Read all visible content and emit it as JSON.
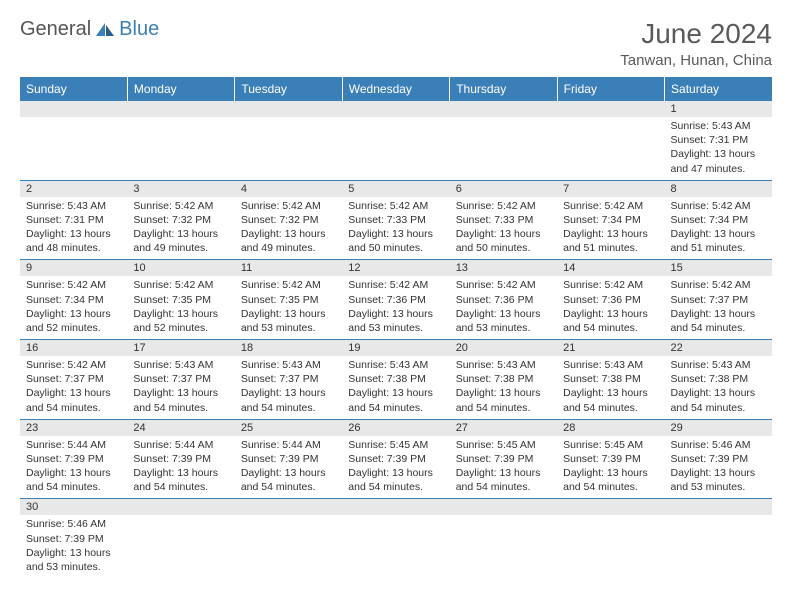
{
  "brand": {
    "text1": "General",
    "text2": "Blue"
  },
  "title": "June 2024",
  "location": "Tanwan, Hunan, China",
  "colors": {
    "header_bg": "#3b7fb8",
    "header_text": "#ffffff",
    "daynum_bg": "#e8e8e8",
    "cell_border": "#3b7fb8",
    "page_bg": "#ffffff",
    "text": "#333333",
    "title_color": "#5a5a5a"
  },
  "weekdays": [
    "Sunday",
    "Monday",
    "Tuesday",
    "Wednesday",
    "Thursday",
    "Friday",
    "Saturday"
  ],
  "labels": {
    "sunrise": "Sunrise:",
    "sunset": "Sunset:",
    "daylight": "Daylight:",
    "hours": "hours",
    "minutes": "minutes."
  },
  "weeks": [
    [
      null,
      null,
      null,
      null,
      null,
      null,
      {
        "day": "1",
        "sunrise": "5:43 AM",
        "sunset": "7:31 PM",
        "dl_h": "13",
        "dl_m": "47"
      }
    ],
    [
      {
        "day": "2",
        "sunrise": "5:43 AM",
        "sunset": "7:31 PM",
        "dl_h": "13",
        "dl_m": "48"
      },
      {
        "day": "3",
        "sunrise": "5:42 AM",
        "sunset": "7:32 PM",
        "dl_h": "13",
        "dl_m": "49"
      },
      {
        "day": "4",
        "sunrise": "5:42 AM",
        "sunset": "7:32 PM",
        "dl_h": "13",
        "dl_m": "49"
      },
      {
        "day": "5",
        "sunrise": "5:42 AM",
        "sunset": "7:33 PM",
        "dl_h": "13",
        "dl_m": "50"
      },
      {
        "day": "6",
        "sunrise": "5:42 AM",
        "sunset": "7:33 PM",
        "dl_h": "13",
        "dl_m": "50"
      },
      {
        "day": "7",
        "sunrise": "5:42 AM",
        "sunset": "7:34 PM",
        "dl_h": "13",
        "dl_m": "51"
      },
      {
        "day": "8",
        "sunrise": "5:42 AM",
        "sunset": "7:34 PM",
        "dl_h": "13",
        "dl_m": "51"
      }
    ],
    [
      {
        "day": "9",
        "sunrise": "5:42 AM",
        "sunset": "7:34 PM",
        "dl_h": "13",
        "dl_m": "52"
      },
      {
        "day": "10",
        "sunrise": "5:42 AM",
        "sunset": "7:35 PM",
        "dl_h": "13",
        "dl_m": "52"
      },
      {
        "day": "11",
        "sunrise": "5:42 AM",
        "sunset": "7:35 PM",
        "dl_h": "13",
        "dl_m": "53"
      },
      {
        "day": "12",
        "sunrise": "5:42 AM",
        "sunset": "7:36 PM",
        "dl_h": "13",
        "dl_m": "53"
      },
      {
        "day": "13",
        "sunrise": "5:42 AM",
        "sunset": "7:36 PM",
        "dl_h": "13",
        "dl_m": "53"
      },
      {
        "day": "14",
        "sunrise": "5:42 AM",
        "sunset": "7:36 PM",
        "dl_h": "13",
        "dl_m": "54"
      },
      {
        "day": "15",
        "sunrise": "5:42 AM",
        "sunset": "7:37 PM",
        "dl_h": "13",
        "dl_m": "54"
      }
    ],
    [
      {
        "day": "16",
        "sunrise": "5:42 AM",
        "sunset": "7:37 PM",
        "dl_h": "13",
        "dl_m": "54"
      },
      {
        "day": "17",
        "sunrise": "5:43 AM",
        "sunset": "7:37 PM",
        "dl_h": "13",
        "dl_m": "54"
      },
      {
        "day": "18",
        "sunrise": "5:43 AM",
        "sunset": "7:37 PM",
        "dl_h": "13",
        "dl_m": "54"
      },
      {
        "day": "19",
        "sunrise": "5:43 AM",
        "sunset": "7:38 PM",
        "dl_h": "13",
        "dl_m": "54"
      },
      {
        "day": "20",
        "sunrise": "5:43 AM",
        "sunset": "7:38 PM",
        "dl_h": "13",
        "dl_m": "54"
      },
      {
        "day": "21",
        "sunrise": "5:43 AM",
        "sunset": "7:38 PM",
        "dl_h": "13",
        "dl_m": "54"
      },
      {
        "day": "22",
        "sunrise": "5:43 AM",
        "sunset": "7:38 PM",
        "dl_h": "13",
        "dl_m": "54"
      }
    ],
    [
      {
        "day": "23",
        "sunrise": "5:44 AM",
        "sunset": "7:39 PM",
        "dl_h": "13",
        "dl_m": "54"
      },
      {
        "day": "24",
        "sunrise": "5:44 AM",
        "sunset": "7:39 PM",
        "dl_h": "13",
        "dl_m": "54"
      },
      {
        "day": "25",
        "sunrise": "5:44 AM",
        "sunset": "7:39 PM",
        "dl_h": "13",
        "dl_m": "54"
      },
      {
        "day": "26",
        "sunrise": "5:45 AM",
        "sunset": "7:39 PM",
        "dl_h": "13",
        "dl_m": "54"
      },
      {
        "day": "27",
        "sunrise": "5:45 AM",
        "sunset": "7:39 PM",
        "dl_h": "13",
        "dl_m": "54"
      },
      {
        "day": "28",
        "sunrise": "5:45 AM",
        "sunset": "7:39 PM",
        "dl_h": "13",
        "dl_m": "54"
      },
      {
        "day": "29",
        "sunrise": "5:46 AM",
        "sunset": "7:39 PM",
        "dl_h": "13",
        "dl_m": "53"
      }
    ],
    [
      {
        "day": "30",
        "sunrise": "5:46 AM",
        "sunset": "7:39 PM",
        "dl_h": "13",
        "dl_m": "53"
      },
      null,
      null,
      null,
      null,
      null,
      null
    ]
  ]
}
